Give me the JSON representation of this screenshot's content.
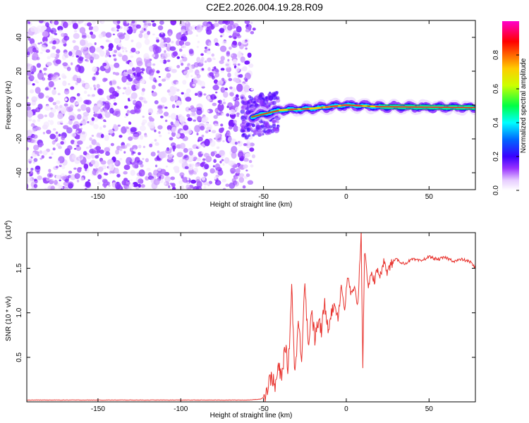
{
  "title": "C2E2.2026.004.19.28.R09",
  "chart_data": [
    {
      "type": "heatmap",
      "title": "C2E2.2026.004.19.28.R09",
      "xlabel": "Height of straight line (km)",
      "ylabel": "Frequency (Hz)",
      "xlim": [
        -193,
        78
      ],
      "ylim": [
        -50,
        50
      ],
      "xticks": [
        -150,
        -100,
        -50,
        0,
        50
      ],
      "yticks": [
        -40,
        -20,
        0,
        20,
        40
      ],
      "grid": false,
      "colorbar": {
        "label": "Normalized spectral amplitude",
        "range": [
          0.0,
          1.0
        ],
        "ticks": [
          0.0,
          0.2,
          0.4,
          0.6,
          0.8
        ],
        "colormap": "rainbow (white-purple-blue-cyan-green-yellow-red-magenta)"
      },
      "regions": [
        {
          "description": "noise",
          "x_range": [
            -193,
            -57
          ],
          "y_range": [
            -50,
            50
          ],
          "amplitude": [
            0.05,
            0.25
          ]
        },
        {
          "description": "signal band",
          "x_range": [
            -57,
            78
          ],
          "center_freq": [
            [
              -57,
              -7
            ],
            [
              -40,
              -3
            ],
            [
              -20,
              -2
            ],
            [
              0,
              0
            ],
            [
              20,
              -1
            ],
            [
              78,
              -1.5
            ]
          ],
          "peak_amplitude": 0.95
        }
      ]
    },
    {
      "type": "line",
      "xlabel": "Height of straight line (km)",
      "ylabel": "SNR (10 * v/v)",
      "multiplier_label": "(x10",
      "multiplier_exp": "4",
      "multiplier_close": ")",
      "xlim": [
        -193,
        78
      ],
      "ylim": [
        0,
        1.9
      ],
      "xticks": [
        -150,
        -100,
        -50,
        0,
        50
      ],
      "yticks": [
        0.5,
        1.0,
        1.5
      ],
      "grid": false,
      "series": [
        {
          "color": "#e8322d",
          "x": [
            -193,
            -150,
            -100,
            -60,
            -52,
            -49,
            -47,
            -45,
            -43,
            -41,
            -39,
            -37,
            -35,
            -33,
            -31,
            -29,
            -27,
            -25,
            -23,
            -21,
            -19,
            -17,
            -15,
            -13,
            -11,
            -9,
            -7,
            -5,
            -3,
            -1,
            1,
            3,
            5,
            7,
            9,
            10,
            11,
            13,
            15,
            17,
            19,
            21,
            23,
            25,
            27,
            30,
            35,
            40,
            45,
            50,
            55,
            60,
            65,
            70,
            75,
            78
          ],
          "y": [
            0.02,
            0.02,
            0.02,
            0.02,
            0.03,
            0.06,
            0.2,
            0.3,
            0.15,
            0.4,
            0.25,
            0.65,
            0.35,
            1.3,
            0.3,
            0.9,
            0.5,
            1.4,
            0.6,
            1.05,
            0.7,
            0.9,
            0.8,
            1.1,
            0.85,
            1.0,
            1.1,
            0.95,
            1.3,
            1.05,
            1.4,
            1.2,
            1.25,
            1.1,
            1.9,
            0.4,
            1.7,
            1.3,
            1.45,
            1.35,
            1.5,
            1.4,
            1.6,
            1.45,
            1.55,
            1.6,
            1.55,
            1.6,
            1.58,
            1.63,
            1.6,
            1.62,
            1.58,
            1.6,
            1.57,
            1.5
          ]
        }
      ]
    }
  ]
}
